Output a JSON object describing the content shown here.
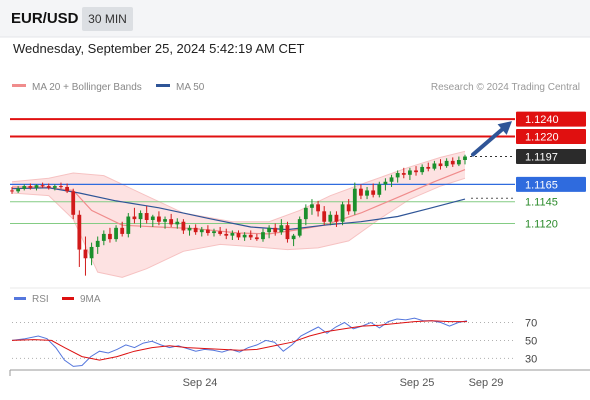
{
  "header": {
    "symbol": "EUR/USD",
    "timeframe": "30 MIN",
    "datetime": "Wednesday, September 25, 2024 5:42:19 AM CET"
  },
  "colors": {
    "bull": "#1a8f2c",
    "bear": "#d11a1a",
    "ma20": "#f08c8c",
    "ma50": "#2f5597",
    "band": "#fde2e2",
    "resistance": "#e01010",
    "current": "#333333",
    "support_blue": "#2f6bde",
    "support_green": "#84cc84",
    "rsi": "#5577dd",
    "rsi_ma": "#dd1111",
    "arrow": "#2f5597"
  },
  "chart_data": [
    {
      "type": "candlestick",
      "legend": [
        {
          "name": "MA 20 + Bollinger Bands",
          "color": "#f08c8c"
        },
        {
          "name": "MA 50",
          "color": "#2f5597"
        }
      ],
      "legend_position": "top-left",
      "credit": "Research © 2024 Trading Central",
      "y_range": [
        1.1055,
        1.1262
      ],
      "x_ticks": [
        "Sep 24",
        "Sep 25",
        "Sep 29"
      ],
      "levels": [
        {
          "label": "1.1240",
          "value": 1.124,
          "style": "resistance"
        },
        {
          "label": "1.1220",
          "value": 1.122,
          "style": "resistance"
        },
        {
          "label": "1.1197",
          "value": 1.1197,
          "style": "current"
        },
        {
          "label": "1.1165",
          "value": 1.1165,
          "style": "support_blue"
        },
        {
          "label": "1.1145",
          "value": 1.1145,
          "style": "support_green"
        },
        {
          "label": "1.1120",
          "value": 1.112,
          "style": "support_green"
        }
      ],
      "candles": [
        [
          1.1158,
          1.1162,
          1.1154,
          1.1157
        ],
        [
          1.1157,
          1.1163,
          1.1155,
          1.116
        ],
        [
          1.116,
          1.1165,
          1.1158,
          1.1163
        ],
        [
          1.1163,
          1.1166,
          1.1159,
          1.1161
        ],
        [
          1.1161,
          1.1165,
          1.1158,
          1.1164
        ],
        [
          1.1164,
          1.1167,
          1.1161,
          1.1163
        ],
        [
          1.1163,
          1.1166,
          1.1159,
          1.1161
        ],
        [
          1.1161,
          1.1165,
          1.1158,
          1.1163
        ],
        [
          1.1163,
          1.1167,
          1.116,
          1.1162
        ],
        [
          1.1162,
          1.1166,
          1.1155,
          1.1157
        ],
        [
          1.1157,
          1.116,
          1.1125,
          1.113
        ],
        [
          1.113,
          1.1135,
          1.107,
          1.109
        ],
        [
          1.109,
          1.1105,
          1.106,
          1.108
        ],
        [
          1.108,
          1.1098,
          1.1072,
          1.1093
        ],
        [
          1.1093,
          1.1105,
          1.1085,
          1.11
        ],
        [
          1.11,
          1.1112,
          1.1095,
          1.1108
        ],
        [
          1.1108,
          1.1115,
          1.1098,
          1.1102
        ],
        [
          1.1102,
          1.1118,
          1.1099,
          1.1115
        ],
        [
          1.1115,
          1.1122,
          1.1105,
          1.1108
        ],
        [
          1.1108,
          1.1132,
          1.1104,
          1.1128
        ],
        [
          1.1128,
          1.1138,
          1.112,
          1.1125
        ],
        [
          1.1125,
          1.1135,
          1.1115,
          1.1132
        ],
        [
          1.1132,
          1.114,
          1.112,
          1.1124
        ],
        [
          1.1124,
          1.113,
          1.1116,
          1.1128
        ],
        [
          1.1128,
          1.1134,
          1.1118,
          1.1122
        ],
        [
          1.1122,
          1.1128,
          1.1114,
          1.1125
        ],
        [
          1.1125,
          1.1131,
          1.1116,
          1.1119
        ],
        [
          1.1119,
          1.1126,
          1.1114,
          1.1122
        ],
        [
          1.1122,
          1.1125,
          1.1108,
          1.1112
        ],
        [
          1.1112,
          1.1118,
          1.1106,
          1.1115
        ],
        [
          1.1115,
          1.1119,
          1.1107,
          1.111
        ],
        [
          1.111,
          1.1116,
          1.1105,
          1.1113
        ],
        [
          1.1113,
          1.1118,
          1.1106,
          1.1109
        ],
        [
          1.1109,
          1.1114,
          1.1105,
          1.1111
        ],
        [
          1.1111,
          1.1116,
          1.1106,
          1.1108
        ],
        [
          1.1108,
          1.1114,
          1.1102,
          1.1106
        ],
        [
          1.1106,
          1.1112,
          1.1101,
          1.1109
        ],
        [
          1.1109,
          1.1112,
          1.1101,
          1.1104
        ],
        [
          1.1104,
          1.111,
          1.11,
          1.1107
        ],
        [
          1.1107,
          1.1112,
          1.1101,
          1.1104
        ],
        [
          1.1104,
          1.1108,
          1.11,
          1.1102
        ],
        [
          1.1102,
          1.1114,
          1.1099,
          1.111
        ],
        [
          1.111,
          1.1118,
          1.1103,
          1.1115
        ],
        [
          1.1115,
          1.112,
          1.1106,
          1.111
        ],
        [
          1.111,
          1.1125,
          1.1107,
          1.1118
        ],
        [
          1.1118,
          1.1122,
          1.1098,
          1.1102
        ],
        [
          1.1102,
          1.1108,
          1.1094,
          1.1106
        ],
        [
          1.1106,
          1.1128,
          1.1104,
          1.1125
        ],
        [
          1.1125,
          1.1142,
          1.1118,
          1.1138
        ],
        [
          1.1138,
          1.1148,
          1.113,
          1.1142
        ],
        [
          1.1142,
          1.1146,
          1.1128,
          1.1134
        ],
        [
          1.1134,
          1.114,
          1.1118,
          1.1122
        ],
        [
          1.1122,
          1.1134,
          1.1118,
          1.113
        ],
        [
          1.113,
          1.1134,
          1.1116,
          1.1122
        ],
        [
          1.1122,
          1.1145,
          1.1118,
          1.1142
        ],
        [
          1.1142,
          1.1148,
          1.113,
          1.1134
        ],
        [
          1.1134,
          1.1167,
          1.113,
          1.116
        ],
        [
          1.116,
          1.1165,
          1.1148,
          1.1152
        ],
        [
          1.1152,
          1.1162,
          1.1148,
          1.1158
        ],
        [
          1.1158,
          1.1166,
          1.115,
          1.1153
        ],
        [
          1.1153,
          1.1168,
          1.115,
          1.1165
        ],
        [
          1.1165,
          1.1172,
          1.1158,
          1.1168
        ],
        [
          1.1168,
          1.1176,
          1.1162,
          1.1173
        ],
        [
          1.1173,
          1.1181,
          1.1167,
          1.1178
        ],
        [
          1.1178,
          1.1184,
          1.1172,
          1.1176
        ],
        [
          1.1176,
          1.1184,
          1.117,
          1.1181
        ],
        [
          1.1181,
          1.1186,
          1.1175,
          1.1179
        ],
        [
          1.1179,
          1.1188,
          1.1176,
          1.1185
        ],
        [
          1.1185,
          1.119,
          1.118,
          1.1183
        ],
        [
          1.1183,
          1.1192,
          1.1181,
          1.1189
        ],
        [
          1.1189,
          1.1194,
          1.1182,
          1.1186
        ],
        [
          1.1186,
          1.1195,
          1.1184,
          1.1192
        ],
        [
          1.1192,
          1.1196,
          1.1185,
          1.1188
        ],
        [
          1.1188,
          1.1197,
          1.1186,
          1.1193
        ],
        [
          1.1193,
          1.1199,
          1.1188,
          1.1197
        ]
      ],
      "ma20": [
        [
          0,
          1.1162
        ],
        [
          5,
          1.1162
        ],
        [
          10,
          1.1158
        ],
        [
          13,
          1.1135
        ],
        [
          18,
          1.1118
        ],
        [
          24,
          1.1116
        ],
        [
          30,
          1.1114
        ],
        [
          37,
          1.1109
        ],
        [
          42,
          1.1108
        ],
        [
          46,
          1.1112
        ],
        [
          51,
          1.1118
        ],
        [
          57,
          1.1132
        ],
        [
          63,
          1.115
        ],
        [
          69,
          1.1168
        ],
        [
          74,
          1.1182
        ]
      ],
      "bb_upper": [
        [
          0,
          1.1168
        ],
        [
          6,
          1.1172
        ],
        [
          10,
          1.1178
        ],
        [
          15,
          1.1175
        ],
        [
          21,
          1.1155
        ],
        [
          28,
          1.1132
        ],
        [
          36,
          1.1122
        ],
        [
          42,
          1.1122
        ],
        [
          47,
          1.1135
        ],
        [
          52,
          1.1152
        ],
        [
          57,
          1.1165
        ],
        [
          61,
          1.1175
        ],
        [
          65,
          1.1185
        ],
        [
          70,
          1.1196
        ],
        [
          74,
          1.1203
        ]
      ],
      "bb_lower": [
        [
          0,
          1.1155
        ],
        [
          6,
          1.1152
        ],
        [
          10,
          1.1125
        ],
        [
          14,
          1.1064
        ],
        [
          18,
          1.1058
        ],
        [
          22,
          1.1068
        ],
        [
          28,
          1.1088
        ],
        [
          34,
          1.1096
        ],
        [
          40,
          1.1093
        ],
        [
          45,
          1.109
        ],
        [
          50,
          1.1092
        ],
        [
          55,
          1.11
        ],
        [
          60,
          1.1125
        ],
        [
          65,
          1.1148
        ],
        [
          70,
          1.1163
        ],
        [
          74,
          1.1172
        ]
      ],
      "ma50": [
        [
          0,
          1.116
        ],
        [
          6,
          1.1161
        ],
        [
          11,
          1.1155
        ],
        [
          17,
          1.1146
        ],
        [
          24,
          1.1138
        ],
        [
          32,
          1.1126
        ],
        [
          39,
          1.1116
        ],
        [
          45,
          1.1113
        ],
        [
          51,
          1.1118
        ],
        [
          57,
          1.1122
        ],
        [
          63,
          1.1128
        ],
        [
          68,
          1.1137
        ],
        [
          74,
          1.1148
        ]
      ],
      "projection_arrow": {
        "from_value": 1.1197,
        "to_value": 1.124
      }
    },
    {
      "type": "line",
      "legend": [
        {
          "name": "RSI",
          "color": "#5577dd"
        },
        {
          "name": "9MA",
          "color": "#dd1111"
        }
      ],
      "y_range": [
        17,
        84
      ],
      "y_ticks": [
        "70",
        "50",
        "30"
      ],
      "series": [
        {
          "name": "RSI",
          "values": [
            [
              0,
              50
            ],
            [
              3,
              52
            ],
            [
              6,
              55
            ],
            [
              8,
              52
            ],
            [
              10,
              42
            ],
            [
              12,
              28
            ],
            [
              14,
              21
            ],
            [
              16,
              22
            ],
            [
              18,
              32
            ],
            [
              20,
              38
            ],
            [
              22,
              36
            ],
            [
              24,
              40
            ],
            [
              26,
              45
            ],
            [
              28,
              42
            ],
            [
              30,
              47
            ],
            [
              32,
              49
            ],
            [
              34,
              45
            ],
            [
              36,
              42
            ],
            [
              38,
              44
            ],
            [
              40,
              41
            ],
            [
              42,
              38
            ],
            [
              44,
              40
            ],
            [
              46,
              39
            ],
            [
              48,
              37
            ],
            [
              50,
              40
            ],
            [
              52,
              37
            ],
            [
              54,
              42
            ],
            [
              56,
              45
            ],
            [
              58,
              50
            ],
            [
              60,
              48
            ],
            [
              62,
              38
            ],
            [
              64,
              45
            ],
            [
              66,
              55
            ],
            [
              68,
              60
            ],
            [
              70,
              65
            ],
            [
              72,
              58
            ],
            [
              74,
              65
            ],
            [
              76,
              70
            ],
            [
              78,
              63
            ],
            [
              80,
              66
            ],
            [
              82,
              70
            ],
            [
              84,
              64
            ],
            [
              86,
              71
            ],
            [
              88,
              74
            ],
            [
              90,
              73
            ],
            [
              92,
              75
            ],
            [
              94,
              72
            ],
            [
              96,
              72
            ],
            [
              98,
              70
            ],
            [
              100,
              66
            ],
            [
              102,
              70
            ],
            [
              104,
              72
            ]
          ]
        },
        {
          "name": "9MA",
          "values": [
            [
              0,
              50
            ],
            [
              5,
              51
            ],
            [
              9,
              50
            ],
            [
              12,
              42
            ],
            [
              16,
              32
            ],
            [
              20,
              28
            ],
            [
              24,
              32
            ],
            [
              28,
              38
            ],
            [
              32,
              42
            ],
            [
              36,
              44
            ],
            [
              40,
              42
            ],
            [
              44,
              41
            ],
            [
              48,
              40
            ],
            [
              52,
              39
            ],
            [
              56,
              40
            ],
            [
              60,
              44
            ],
            [
              64,
              48
            ],
            [
              68,
              55
            ],
            [
              72,
              60
            ],
            [
              76,
              63
            ],
            [
              80,
              66
            ],
            [
              84,
              67
            ],
            [
              88,
              69
            ],
            [
              92,
              71
            ],
            [
              96,
              72
            ],
            [
              100,
              71
            ],
            [
              104,
              71
            ]
          ]
        }
      ]
    }
  ]
}
